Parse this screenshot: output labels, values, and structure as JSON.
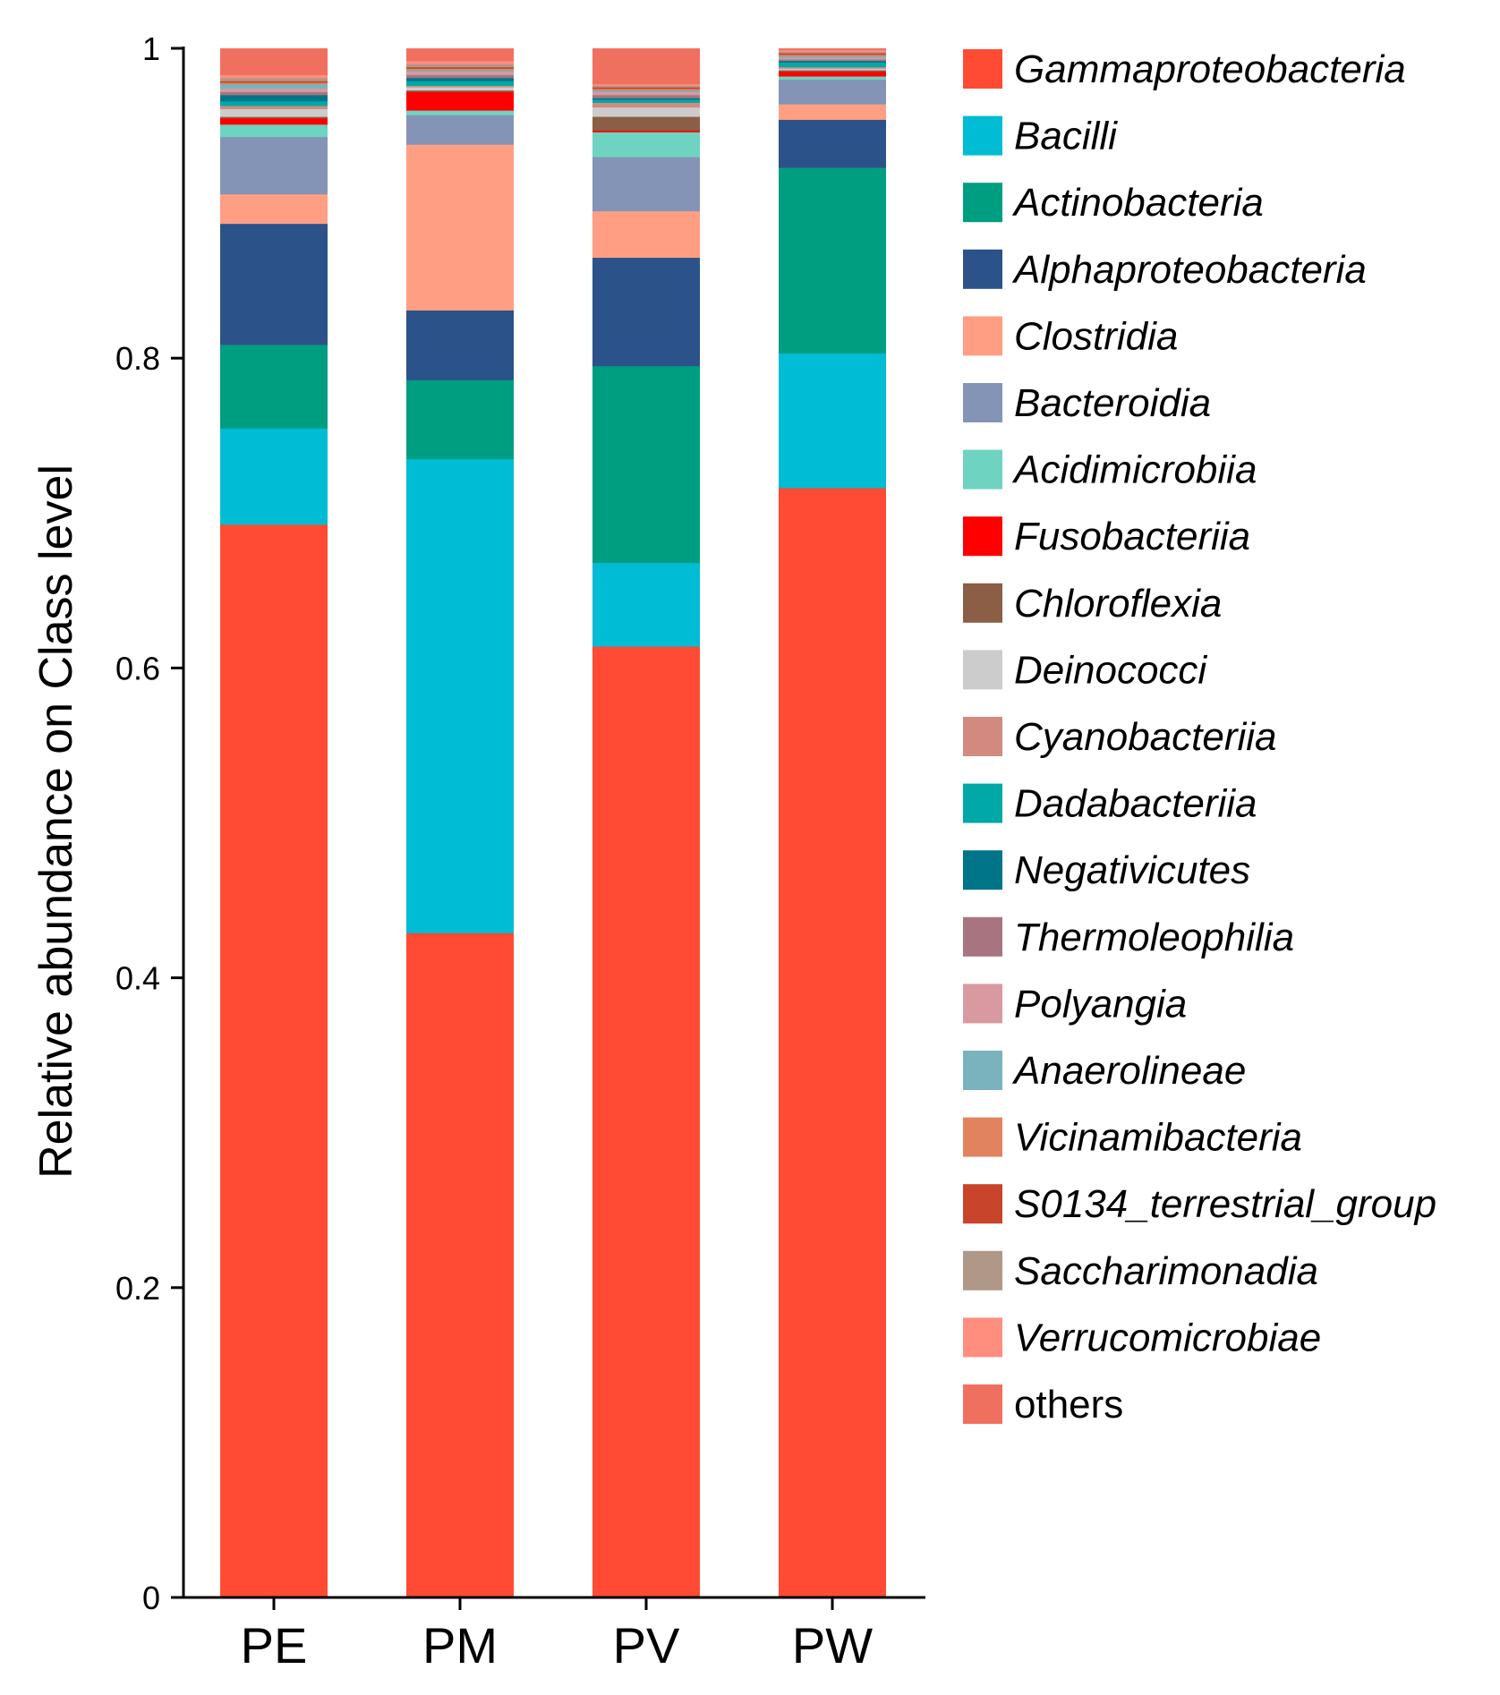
{
  "chart_data": {
    "type": "bar",
    "stacked": true,
    "title": "",
    "xlabel": "",
    "ylabel": "Relative abundance on Class level",
    "ylim": [
      0,
      1
    ],
    "yticks": [
      0,
      0.2,
      0.4,
      0.6,
      0.8,
      1
    ],
    "ytick_labels": [
      "0",
      "0.2",
      "0.4",
      "0.6",
      "0.8",
      "1"
    ],
    "categories": [
      "PE",
      "PM",
      "PV",
      "PW"
    ],
    "legend_position": "right",
    "series": [
      {
        "name": "Gammaproteobacteria",
        "color": "#FF4B33",
        "italic": true,
        "values": [
          0.692,
          0.429,
          0.614,
          0.717
        ]
      },
      {
        "name": "Bacilli",
        "color": "#00BCD4",
        "italic": true,
        "values": [
          0.062,
          0.306,
          0.054,
          0.087
        ]
      },
      {
        "name": "Actinobacteria",
        "color": "#009E80",
        "italic": true,
        "values": [
          0.054,
          0.051,
          0.127,
          0.12
        ]
      },
      {
        "name": "Alphaproteobacteria",
        "color": "#2B5289",
        "italic": true,
        "values": [
          0.078,
          0.045,
          0.07,
          0.031
        ]
      },
      {
        "name": "Clostridia",
        "color": "#FF9E82",
        "italic": true,
        "values": [
          0.019,
          0.107,
          0.03,
          0.01
        ]
      },
      {
        "name": "Bacteroidia",
        "color": "#8494B6",
        "italic": true,
        "values": [
          0.037,
          0.019,
          0.035,
          0.016
        ]
      },
      {
        "name": "Acidimicrobiia",
        "color": "#6ED3C0",
        "italic": true,
        "values": [
          0.008,
          0.003,
          0.016,
          0.002
        ]
      },
      {
        "name": "Fusobacteriia",
        "color": "#FF0000",
        "italic": true,
        "values": [
          0.004,
          0.012,
          0.001,
          0.003
        ]
      },
      {
        "name": "Chloroflexia",
        "color": "#8B5E45",
        "italic": true,
        "values": [
          0.001,
          0.001,
          0.009,
          0.001
        ]
      },
      {
        "name": "Deinococci",
        "color": "#CCCCCC",
        "italic": true,
        "values": [
          0.005,
          0.002,
          0.006,
          0.001
        ]
      },
      {
        "name": "Cyanobacteriia",
        "color": "#D28A80",
        "italic": true,
        "values": [
          0.002,
          0.001,
          0.003,
          0.001
        ]
      },
      {
        "name": "Dadabacteriia",
        "color": "#00A8A8",
        "italic": true,
        "values": [
          0.003,
          0.003,
          0.002,
          0.003
        ]
      },
      {
        "name": "Negativicutes",
        "color": "#00758A",
        "italic": true,
        "values": [
          0.004,
          0.002,
          0.001,
          0.001
        ]
      },
      {
        "name": "Thermoleophilia",
        "color": "#A87480",
        "italic": true,
        "values": [
          0.002,
          0.002,
          0.002,
          0.001
        ]
      },
      {
        "name": "Polyangia",
        "color": "#D89AA0",
        "italic": true,
        "values": [
          0.002,
          0.002,
          0.002,
          0.001
        ]
      },
      {
        "name": "Anaerolineae",
        "color": "#7AB2BE",
        "italic": true,
        "values": [
          0.003,
          0.001,
          0.001,
          0.001
        ]
      },
      {
        "name": "Vicinamibacteria",
        "color": "#E28360",
        "italic": true,
        "values": [
          0.001,
          0.001,
          0.001,
          0.001
        ]
      },
      {
        "name": "S0134_terrestrial_group",
        "color": "#C8442A",
        "italic": true,
        "values": [
          0.001,
          0.001,
          0.001,
          0.001
        ]
      },
      {
        "name": "Saccharimonadia",
        "color": "#B09888",
        "italic": true,
        "values": [
          0.002,
          0.002,
          0.001,
          0.001
        ]
      },
      {
        "name": "Verrucomicrobiae",
        "color": "#FF8E7E",
        "italic": true,
        "values": [
          0.002,
          0.002,
          0.001,
          0.001
        ]
      },
      {
        "name": "others",
        "color": "#F07060",
        "italic": false,
        "values": [
          0.017,
          0.008,
          0.023,
          0.001
        ]
      }
    ]
  }
}
